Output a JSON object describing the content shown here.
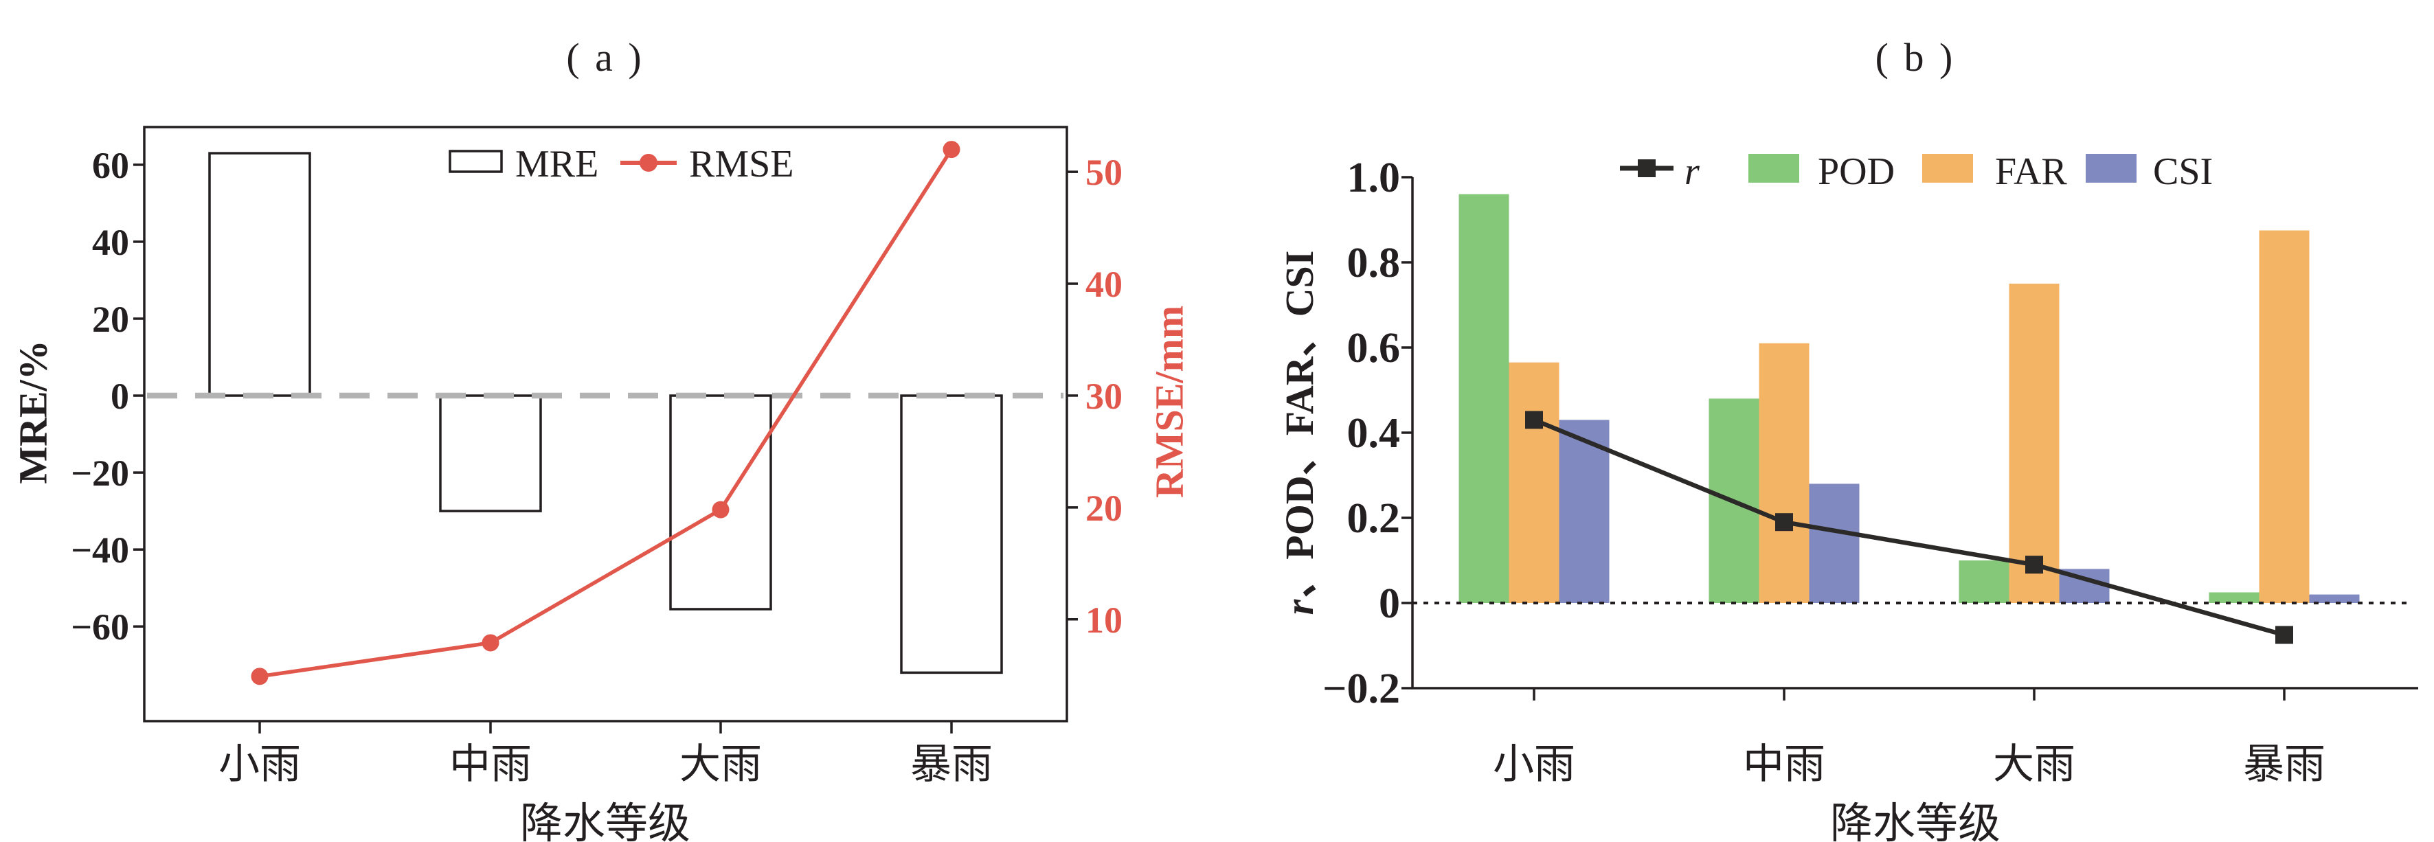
{
  "figure": {
    "background": "#ffffff"
  },
  "colors": {
    "ink": "#231f20",
    "red": "#e2574b",
    "green": "#85c87a",
    "orange": "#f4b466",
    "blue": "#8089c0",
    "gray_dash": "#b3b3b3",
    "marker_black": "#2b2a29",
    "bar_fill": "#ffffff"
  },
  "panels": [
    {
      "id": "a",
      "title": "( a )",
      "xlabel": "降水等级",
      "categories": [
        "小雨",
        "中雨",
        "大雨",
        "暴雨"
      ],
      "left_axis": {
        "label": "MRE/%",
        "ylim": [
          -84.6,
          69.8
        ],
        "ticks": [
          {
            "v": 60,
            "label": "60"
          },
          {
            "v": 40,
            "label": "40"
          },
          {
            "v": 20,
            "label": "20"
          },
          {
            "v": 0,
            "label": "0"
          },
          {
            "v": -20,
            "label": "−20"
          },
          {
            "v": -40,
            "label": "−40"
          },
          {
            "v": -60,
            "label": "−60"
          }
        ]
      },
      "right_axis": {
        "label": "RMSE/mm",
        "ylim": [
          0.9,
          54.0
        ],
        "ticks": [
          {
            "v": 50,
            "label": "50"
          },
          {
            "v": 40,
            "label": "40"
          },
          {
            "v": 30,
            "label": "30"
          },
          {
            "v": 20,
            "label": "20"
          },
          {
            "v": 10,
            "label": "10"
          }
        ]
      },
      "legend": [
        {
          "label": "MRE",
          "swatch": "open-rect"
        },
        {
          "label": "RMSE",
          "swatch": "line-dot"
        }
      ],
      "series": [
        {
          "name": "MRE",
          "type": "bar",
          "axis": "left",
          "values": [
            63,
            -30,
            -55.5,
            -72
          ]
        },
        {
          "name": "RMSE",
          "type": "line",
          "axis": "right",
          "marker": "circle",
          "values": [
            4.9,
            7.9,
            19.8,
            52
          ]
        }
      ],
      "zero_line": {
        "value": 0,
        "style": "dashed"
      }
    },
    {
      "id": "b",
      "title": "( b )",
      "xlabel": "降水等级",
      "ylabel": "r、POD、FAR、CSI",
      "categories": [
        "小雨",
        "中雨",
        "大雨",
        "暴雨"
      ],
      "axis": {
        "ylim": [
          -0.2,
          1.0
        ],
        "ticks": [
          {
            "v": 1.0,
            "label": "1.0"
          },
          {
            "v": 0.8,
            "label": "0.8"
          },
          {
            "v": 0.6,
            "label": "0.6"
          },
          {
            "v": 0.4,
            "label": "0.4"
          },
          {
            "v": 0.2,
            "label": "0.2"
          },
          {
            "v": 0,
            "label": "0"
          },
          {
            "v": -0.2,
            "label": "−0.2"
          }
        ]
      },
      "legend": [
        {
          "label": "r",
          "swatch": "line-square",
          "italic": true
        },
        {
          "label": "POD",
          "swatch": "rect",
          "color": "#85c87a"
        },
        {
          "label": "FAR",
          "swatch": "rect",
          "color": "#f4b466"
        },
        {
          "label": "CSI",
          "swatch": "rect",
          "color": "#8089c0"
        }
      ],
      "series": [
        {
          "name": "r",
          "type": "line",
          "marker": "square",
          "values": [
            0.43,
            0.19,
            0.09,
            -0.075
          ]
        },
        {
          "name": "POD",
          "type": "bar",
          "color": "#85c87a",
          "values": [
            0.96,
            0.48,
            0.1,
            0.025
          ]
        },
        {
          "name": "FAR",
          "type": "bar",
          "color": "#f4b466",
          "values": [
            0.565,
            0.61,
            0.75,
            0.875
          ]
        },
        {
          "name": "CSI",
          "type": "bar",
          "color": "#8089c0",
          "values": [
            0.43,
            0.28,
            0.08,
            0.02
          ]
        }
      ],
      "zero_line": {
        "value": 0,
        "style": "dotted"
      }
    }
  ],
  "chart_data": [
    {
      "type": "bar",
      "panel": "a",
      "title": "( a )",
      "xlabel": "降水等级",
      "ylabel_left": "MRE/%",
      "ylabel_right": "RMSE/mm",
      "categories": [
        "小雨",
        "中雨",
        "大雨",
        "暴雨"
      ],
      "series": [
        {
          "name": "MRE",
          "type": "bar",
          "axis": "left",
          "unit": "%",
          "values": [
            63,
            -30,
            -55.5,
            -72
          ]
        },
        {
          "name": "RMSE",
          "type": "line",
          "axis": "right",
          "unit": "mm",
          "values": [
            4.9,
            7.9,
            19.8,
            52
          ]
        }
      ],
      "ylim_left": [
        -84.6,
        69.8
      ],
      "yticks_left": [
        60,
        40,
        20,
        0,
        -20,
        -40,
        -60
      ],
      "ylim_right": [
        0.9,
        54.0
      ],
      "yticks_right": [
        50,
        40,
        30,
        20,
        10
      ],
      "grid": false,
      "legend_position": "top-center-inside",
      "annotations": [
        "gray dashed zero line at MRE=0"
      ]
    },
    {
      "type": "bar",
      "panel": "b",
      "title": "( b )",
      "xlabel": "降水等级",
      "ylabel": "r、POD、FAR、CSI",
      "categories": [
        "小雨",
        "中雨",
        "大雨",
        "暴雨"
      ],
      "series": [
        {
          "name": "r",
          "type": "line",
          "values": [
            0.43,
            0.19,
            0.09,
            -0.075
          ]
        },
        {
          "name": "POD",
          "type": "bar",
          "values": [
            0.96,
            0.48,
            0.1,
            0.025
          ]
        },
        {
          "name": "FAR",
          "type": "bar",
          "values": [
            0.565,
            0.61,
            0.75,
            0.875
          ]
        },
        {
          "name": "CSI",
          "type": "bar",
          "values": [
            0.43,
            0.28,
            0.08,
            0.02
          ]
        }
      ],
      "ylim": [
        -0.2,
        1.0
      ],
      "yticks": [
        1.0,
        0.8,
        0.6,
        0.4,
        0.2,
        0,
        -0.2
      ],
      "grid": false,
      "legend_position": "top-center-above",
      "annotations": [
        "black dotted zero line at 0"
      ]
    }
  ]
}
